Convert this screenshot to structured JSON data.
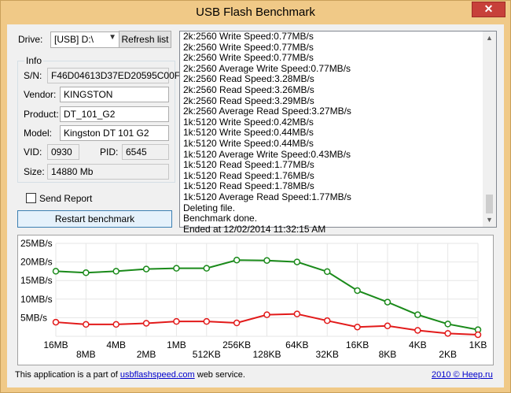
{
  "window": {
    "title": "USB Flash Benchmark",
    "close_symbol": "✕"
  },
  "drive": {
    "label": "Drive:",
    "value": "[USB] D:\\",
    "refresh_label": "Refresh list"
  },
  "info": {
    "title": "Info",
    "sn_label": "S/N:",
    "sn": "F46D04613D37ED20595C00F",
    "vendor_label": "Vendor:",
    "vendor": "KINGSTON",
    "product_label": "Product:",
    "product": "DT_101_G2",
    "model_label": "Model:",
    "model": "Kingston DT 101 G2",
    "vid_label": "VID:",
    "vid": "0930",
    "pid_label": "PID:",
    "pid": "6545",
    "size_label": "Size:",
    "size": "14880 Mb"
  },
  "send_report": {
    "label": "Send Report",
    "checked": false
  },
  "restart_label": "Restart benchmark",
  "log": [
    "2k:2560 Write Speed:0.77MB/s",
    "2k:2560 Write Speed:0.77MB/s",
    "2k:2560 Write Speed:0.77MB/s",
    "2k:2560 Average Write Speed:0.77MB/s",
    "2k:2560 Read Speed:3.28MB/s",
    "2k:2560 Read Speed:3.26MB/s",
    "2k:2560 Read Speed:3.29MB/s",
    "2k:2560 Average Read Speed:3.27MB/s",
    "1k:5120 Write Speed:0.42MB/s",
    "1k:5120 Write Speed:0.44MB/s",
    "1k:5120 Write Speed:0.44MB/s",
    "1k:5120 Average Write Speed:0.43MB/s",
    "1k:5120 Read Speed:1.77MB/s",
    "1k:5120 Read Speed:1.76MB/s",
    "1k:5120 Read Speed:1.78MB/s",
    "1k:5120 Average Read Speed:1.77MB/s",
    "Deleting file.",
    "Benchmark done.",
    "Ended at 12/02/2014 11:32:15 AM"
  ],
  "chart_data": {
    "type": "line",
    "ylim": [
      0,
      25
    ],
    "yticks": [
      "25MB/s",
      "20MB/s",
      "15MB/s",
      "10MB/s",
      "5MB/s"
    ],
    "ytick_values": [
      25,
      20,
      15,
      10,
      5
    ],
    "categories": [
      "16MB",
      "8MB",
      "4MB",
      "2MB",
      "1MB",
      "512KB",
      "256KB",
      "128KB",
      "64KB",
      "32KB",
      "16KB",
      "8KB",
      "4KB",
      "2KB",
      "1KB"
    ],
    "grid": true,
    "series": [
      {
        "color": "#1a8a1a",
        "values": [
          17.5,
          17.1,
          17.5,
          18.1,
          18.3,
          18.3,
          20.5,
          20.4,
          20.0,
          17.4,
          12.3,
          9.2,
          5.8,
          3.3,
          1.77
        ]
      },
      {
        "color": "#e21a1a",
        "values": [
          3.8,
          3.2,
          3.2,
          3.5,
          4.0,
          4.0,
          3.6,
          5.8,
          6.0,
          4.2,
          2.5,
          2.8,
          1.6,
          0.77,
          0.43
        ]
      }
    ]
  },
  "footer": {
    "text_before": "This application is a part of ",
    "link": "usbflashspeed.com",
    "text_after": " web service.",
    "year": "2010",
    "copyright": " © Heep.ru"
  }
}
